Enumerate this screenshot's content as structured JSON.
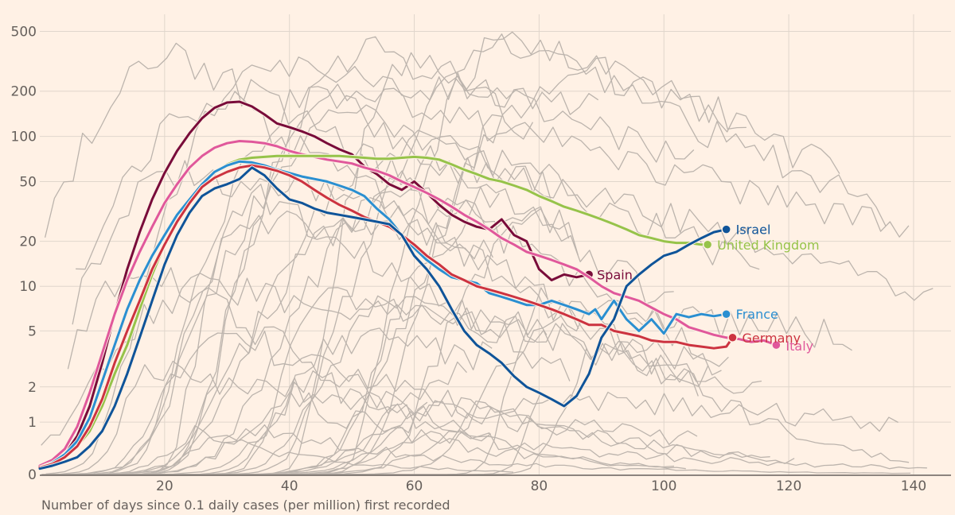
{
  "chart_data": {
    "type": "line",
    "title": "",
    "xlabel": "Number of days since 0.1 daily cases (per million) first recorded",
    "ylabel": "",
    "x_scale": "linear",
    "y_scale": "asinh",
    "xlim": [
      0,
      146
    ],
    "ylim": [
      0,
      650
    ],
    "x_ticks": [
      20,
      40,
      60,
      80,
      100,
      120,
      140
    ],
    "x_tick_labels": [
      "20",
      "40",
      "60",
      "80",
      "100",
      "120",
      "140"
    ],
    "y_ticks": [
      0,
      1,
      2,
      5,
      10,
      20,
      50,
      100,
      200,
      500
    ],
    "y_tick_labels": [
      "0",
      "1",
      "2",
      "5",
      "10",
      "20",
      "50",
      "100",
      "200",
      "500"
    ],
    "grid": true,
    "legend": "direct-labels",
    "colors": {
      "background": "#fff1e5",
      "grid": "#e0d6cc",
      "axis": "#66605c",
      "other_countries": "#bcb4ad",
      "Israel": "#0f5499",
      "United Kingdom": "#96c34a",
      "Spain": "#790c3a",
      "France": "#2a8fd1",
      "Germany": "#cc3340",
      "Italy": "#e0589b"
    },
    "highlighted": [
      {
        "name": "Spain",
        "label": "Spain",
        "color": "#790c3a",
        "x": [
          0,
          2,
          4,
          6,
          8,
          10,
          12,
          14,
          16,
          18,
          20,
          22,
          24,
          26,
          28,
          30,
          32,
          34,
          36,
          38,
          40,
          42,
          44,
          46,
          48,
          50,
          52,
          54,
          56,
          58,
          60,
          62,
          64,
          66,
          68,
          70,
          72,
          74,
          76,
          78,
          80,
          82,
          84,
          86,
          88
        ],
        "y": [
          0.12,
          0.2,
          0.35,
          0.7,
          1.4,
          3,
          6.5,
          13,
          23,
          38,
          57,
          80,
          105,
          132,
          155,
          168,
          170,
          158,
          140,
          122,
          115,
          108,
          100,
          90,
          82,
          76,
          63,
          56,
          48,
          44,
          50,
          42,
          35,
          30,
          27,
          25,
          24,
          28,
          22,
          20,
          13,
          11,
          12,
          11.5,
          12
        ]
      },
      {
        "name": "Italy",
        "label": "Italy",
        "color": "#e0589b",
        "x": [
          0,
          2,
          4,
          6,
          8,
          10,
          12,
          14,
          16,
          18,
          20,
          22,
          24,
          26,
          28,
          30,
          32,
          34,
          36,
          38,
          40,
          42,
          44,
          46,
          48,
          50,
          52,
          54,
          56,
          58,
          60,
          62,
          64,
          66,
          68,
          70,
          72,
          74,
          76,
          78,
          80,
          82,
          84,
          86,
          88,
          90,
          92,
          94,
          96,
          98,
          100,
          102,
          104,
          106,
          108,
          110,
          112,
          114,
          116,
          118
        ],
        "y": [
          0.15,
          0.25,
          0.45,
          0.9,
          1.8,
          3.5,
          6.5,
          11,
          17,
          25,
          36,
          48,
          62,
          74,
          84,
          90,
          93,
          92,
          90,
          86,
          80,
          76,
          73,
          70,
          68,
          66,
          62,
          59,
          55,
          50,
          46,
          42,
          38,
          34,
          30,
          27,
          24,
          21,
          19,
          17,
          16,
          15,
          14,
          13,
          11.5,
          10,
          9,
          8.5,
          8,
          7.2,
          6.5,
          6,
          5.3,
          5,
          4.7,
          4.5,
          4.4,
          4.2,
          4.3,
          4
        ]
      },
      {
        "name": "United Kingdom",
        "label": "United Kingdom",
        "color": "#96c34a",
        "x": [
          0,
          2,
          4,
          6,
          8,
          10,
          12,
          14,
          16,
          18,
          20,
          22,
          24,
          26,
          28,
          30,
          32,
          34,
          36,
          38,
          40,
          42,
          44,
          46,
          48,
          50,
          52,
          54,
          56,
          58,
          60,
          62,
          64,
          66,
          68,
          70,
          72,
          74,
          76,
          78,
          80,
          82,
          84,
          86,
          88,
          90,
          92,
          94,
          96,
          98,
          100,
          102,
          104,
          106,
          107
        ],
        "y": [
          0.12,
          0.18,
          0.3,
          0.5,
          0.8,
          1.4,
          2.5,
          4,
          7,
          12,
          19,
          28,
          38,
          48,
          58,
          65,
          70,
          72,
          73,
          74,
          74,
          74,
          74,
          74,
          74,
          73,
          72,
          71,
          71,
          72,
          73,
          72,
          70,
          65,
          60,
          56,
          52,
          50,
          47,
          44,
          40,
          37,
          34,
          32,
          30,
          28,
          26,
          24,
          22,
          21,
          20,
          19.5,
          19.5,
          19,
          19
        ]
      },
      {
        "name": "France",
        "label": "France",
        "color": "#2a8fd1",
        "x": [
          0,
          2,
          4,
          6,
          8,
          10,
          12,
          14,
          16,
          18,
          20,
          22,
          24,
          26,
          28,
          30,
          32,
          34,
          36,
          38,
          40,
          42,
          44,
          46,
          48,
          50,
          52,
          54,
          56,
          58,
          60,
          62,
          64,
          66,
          68,
          70,
          72,
          74,
          76,
          78,
          80,
          82,
          84,
          86,
          88,
          89,
          90,
          92,
          94,
          96,
          98,
          100,
          102,
          104,
          106,
          108,
          110
        ],
        "y": [
          0.12,
          0.2,
          0.35,
          0.6,
          1.1,
          2.2,
          4,
          7,
          11,
          16,
          22,
          30,
          38,
          48,
          58,
          64,
          68,
          67,
          64,
          60,
          57,
          54,
          52,
          50,
          47,
          44,
          40,
          33,
          28,
          22,
          18,
          15,
          13,
          11.5,
          11,
          10.5,
          9,
          8.5,
          8,
          7.5,
          7.5,
          8,
          7.5,
          7,
          6.5,
          7,
          6,
          8,
          6,
          5,
          6,
          4.8,
          6.5,
          6.2,
          6.5,
          6.3,
          6.5
        ]
      },
      {
        "name": "Germany",
        "label": "Germany",
        "color": "#cc3340",
        "x": [
          0,
          2,
          4,
          6,
          8,
          10,
          12,
          14,
          16,
          18,
          20,
          22,
          24,
          26,
          28,
          30,
          32,
          34,
          36,
          38,
          40,
          42,
          44,
          46,
          48,
          50,
          52,
          54,
          56,
          58,
          60,
          62,
          64,
          66,
          68,
          70,
          72,
          74,
          76,
          78,
          80,
          82,
          84,
          86,
          88,
          90,
          92,
          94,
          96,
          98,
          100,
          102,
          104,
          106,
          108,
          110,
          111
        ],
        "y": [
          0.12,
          0.18,
          0.3,
          0.5,
          0.9,
          1.6,
          3,
          5,
          8,
          13,
          19,
          27,
          36,
          46,
          53,
          58,
          62,
          64,
          62,
          59,
          55,
          50,
          44,
          39,
          35,
          32,
          29,
          27,
          25,
          22,
          19,
          16,
          14,
          12,
          11,
          10,
          9.5,
          9,
          8.5,
          8,
          7.5,
          7,
          6.5,
          6,
          5.5,
          5.5,
          5,
          4.8,
          4.6,
          4.3,
          4.2,
          4.2,
          4,
          3.9,
          3.8,
          3.9,
          4.5
        ]
      },
      {
        "name": "Israel",
        "label": "Israel",
        "color": "#0f5499",
        "x": [
          0,
          2,
          4,
          6,
          8,
          10,
          12,
          14,
          16,
          18,
          20,
          22,
          24,
          26,
          28,
          30,
          32,
          34,
          36,
          38,
          40,
          42,
          44,
          46,
          48,
          50,
          52,
          54,
          56,
          58,
          60,
          62,
          64,
          66,
          68,
          70,
          72,
          74,
          76,
          78,
          80,
          82,
          84,
          86,
          88,
          90,
          92,
          94,
          96,
          98,
          100,
          102,
          104,
          106,
          108,
          110
        ],
        "y": [
          0.1,
          0.15,
          0.22,
          0.3,
          0.5,
          0.8,
          1.4,
          2.5,
          4.5,
          8,
          14,
          22,
          31,
          40,
          45,
          48,
          52,
          62,
          55,
          45,
          38,
          36,
          33,
          31,
          30,
          29,
          28,
          27,
          26,
          22,
          16,
          13,
          10,
          7,
          5,
          4,
          3.5,
          3,
          2.4,
          2,
          1.8,
          1.6,
          1.4,
          1.7,
          2.5,
          4.5,
          6,
          10,
          12,
          14,
          16,
          17,
          19,
          21,
          23,
          24
        ]
      }
    ],
    "other_countries_count": 40,
    "other_countries_note": "Grey lines for other countries; not individually labeled"
  }
}
